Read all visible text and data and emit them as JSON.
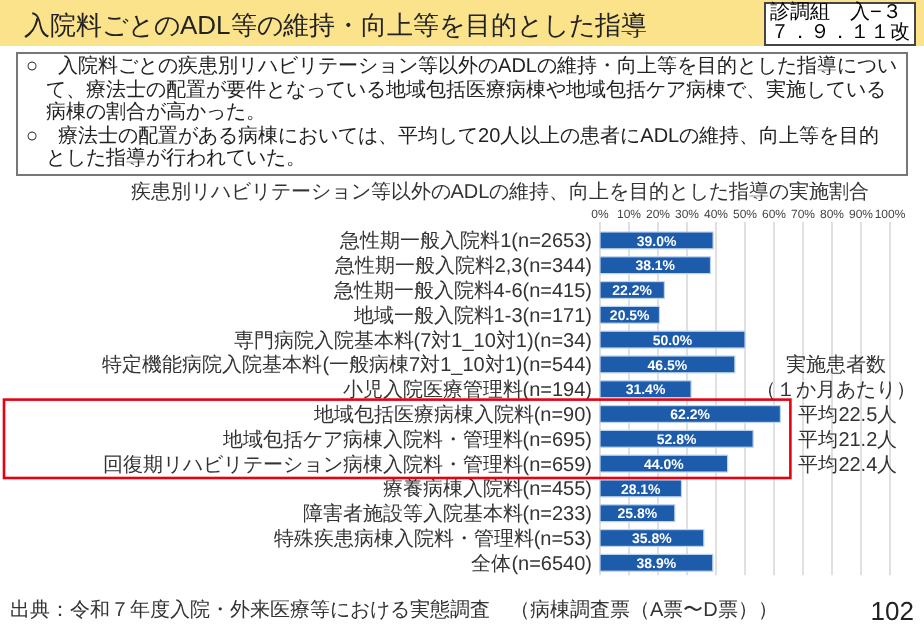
{
  "chart_data": {
    "type": "bar",
    "orientation": "horizontal",
    "title": "入院料ごとのADL等の維持・向上等を目的とした指導",
    "subtitle": "疾患別リハビリテーション等以外のADLの維持、向上を目的とした指導の実施割合",
    "categories": [
      "急性期一般入院料1(n=2653)",
      "急性期一般入院料2,3(n=344)",
      "急性期一般入院料4-6(n=415)",
      "地域一般入院料1-3(n=171)",
      "専門病院入院基本料(7対1_10対1)(n=34)",
      "特定機能病院入院基本料(一般病棟7対1_10対1)(n=544)",
      "小児入院医療管理料(n=194)",
      "地域包括医療病棟入院料(n=90)",
      "地域包括ケア病棟入院料・管理料(n=695)",
      "回復期リハビリテーション病棟入院料・管理料(n=659)",
      "療養病棟入院料(n=455)",
      "障害者施設等入院基本料(n=233)",
      "特殊疾患病棟入院料・管理料(n=53)",
      "全体(n=6540)"
    ],
    "values": [
      39.0,
      38.1,
      22.2,
      20.5,
      50.0,
      46.5,
      31.4,
      62.2,
      52.8,
      44.0,
      28.1,
      25.8,
      35.8,
      38.9
    ],
    "value_labels": [
      "39.0%",
      "38.1%",
      "22.2%",
      "20.5%",
      "50.0%",
      "46.5%",
      "31.4%",
      "62.2%",
      "52.8%",
      "44.0%",
      "28.1%",
      "25.8%",
      "35.8%",
      "38.9%"
    ],
    "color": "#1c5cab",
    "xlim": [
      0,
      100
    ],
    "xticks": [
      {
        "value": 0,
        "label": "0%"
      },
      {
        "value": 10,
        "label": "10%"
      },
      {
        "value": 20,
        "label": "20%"
      },
      {
        "value": 30,
        "label": "30%"
      },
      {
        "value": 40,
        "label": "40%"
      },
      {
        "value": 50,
        "label": "50%"
      },
      {
        "value": 60,
        "label": "60%"
      },
      {
        "value": 70,
        "label": "70%"
      },
      {
        "value": 80,
        "label": "80%"
      },
      {
        "value": 90,
        "label": "90%"
      },
      {
        "value": 100,
        "label": "100%"
      }
    ],
    "grid": "x",
    "annotations": [
      "診調組　入−３",
      "７．９．１１改",
      "○　入院料ごとの疾患別リハビリテーション等以外のADLの維持・向上等を目的とした指導について、療法士の配置が要件となっている地域包括医療病棟や地域包括ケア病棟で、実施している病棟の割合が高かった。",
      "○　療法士の配置がある病棟においては、平均して20人以上の患者にADLの維持、向上等を目的とした指導が行われていた。",
      "実施患者数",
      "（１か月あたり）",
      "平均22.5人",
      "平均21.2人",
      "平均22.4人",
      "出典：令和７年度入院・外来医療等における実態調査　（病棟調査票（A票〜D票））",
      "102"
    ]
  }
}
